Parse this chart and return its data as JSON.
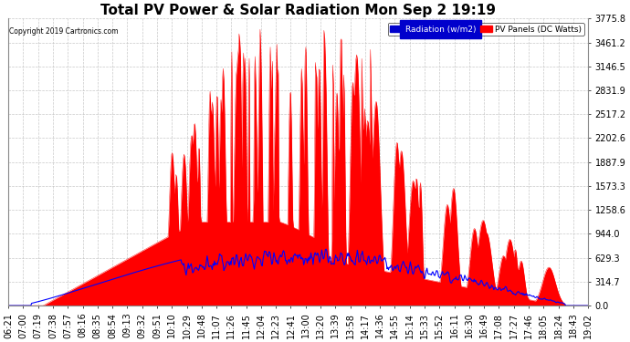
{
  "title": "Total PV Power & Solar Radiation Mon Sep 2 19:19",
  "copyright": "Copyright 2019 Cartronics.com",
  "legend_radiation": "Radiation (w/m2)",
  "legend_pv": "PV Panels (DC Watts)",
  "ymax": 3775.8,
  "yticks": [
    0.0,
    314.7,
    629.3,
    944.0,
    1258.6,
    1573.3,
    1887.9,
    2202.6,
    2517.2,
    2831.9,
    3146.5,
    3461.2,
    3775.8
  ],
  "radiation_color": "#0000ff",
  "pv_color": "#ff0000",
  "pv_fill_color": "#ff0000",
  "bg_color": "#ffffff",
  "grid_color": "#aaaaaa",
  "title_fontsize": 11,
  "tick_fontsize": 7,
  "x_labels": [
    "06:21",
    "07:00",
    "07:19",
    "07:38",
    "07:57",
    "08:16",
    "08:35",
    "08:54",
    "09:13",
    "09:32",
    "09:51",
    "10:10",
    "10:29",
    "10:48",
    "11:07",
    "11:26",
    "11:45",
    "12:04",
    "12:23",
    "12:41",
    "13:00",
    "13:20",
    "13:39",
    "13:58",
    "14:17",
    "14:36",
    "14:55",
    "15:14",
    "15:33",
    "15:52",
    "16:11",
    "16:30",
    "16:49",
    "17:08",
    "17:27",
    "17:46",
    "18:05",
    "18:24",
    "18:43",
    "19:02"
  ]
}
